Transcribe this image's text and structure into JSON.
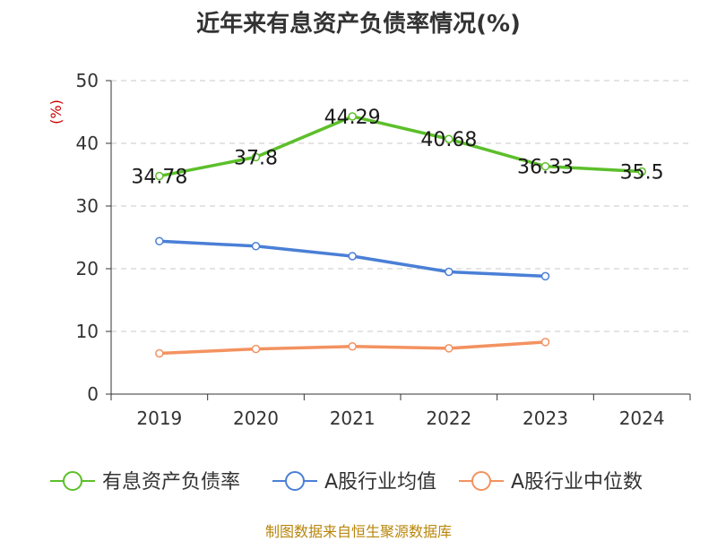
{
  "title": "近年来有息资产负债率情况(%)",
  "ylabel": "(%)",
  "source": "制图数据来自恒生聚源数据库",
  "chart_data": {
    "type": "line",
    "categories": [
      "2019",
      "2020",
      "2021",
      "2022",
      "2023",
      "2024"
    ],
    "ylim": [
      0,
      50
    ],
    "yticks": [
      0,
      10,
      20,
      30,
      40,
      50
    ],
    "grid": true,
    "legend_position": "bottom",
    "series": [
      {
        "name": "有息资产负债率",
        "color": "#5cbf2a",
        "values": [
          34.78,
          37.8,
          44.29,
          40.68,
          36.33,
          35.5
        ],
        "labels": [
          "34.78",
          "37.8",
          "44.29",
          "40.68",
          "36.33",
          "35.5"
        ]
      },
      {
        "name": "A股行业均值",
        "color": "#4a7fd6",
        "values": [
          24.4,
          23.6,
          22.0,
          19.5,
          18.8,
          null
        ]
      },
      {
        "name": "A股行业中位数",
        "color": "#f39260",
        "values": [
          6.5,
          7.2,
          7.6,
          7.3,
          8.3,
          null
        ]
      }
    ]
  }
}
